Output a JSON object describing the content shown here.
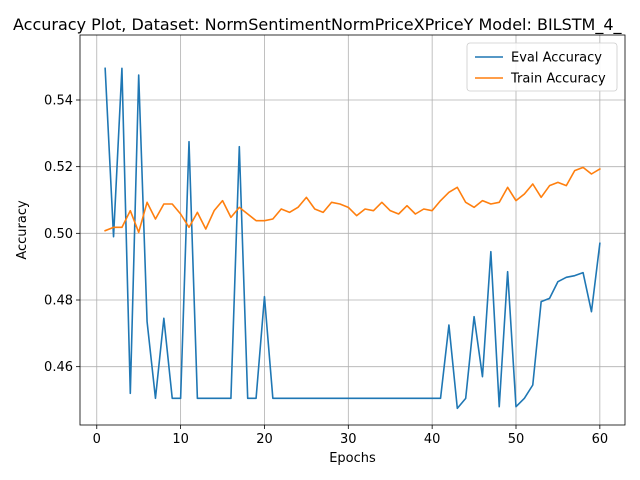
{
  "chart_data": {
    "type": "line",
    "title": "Accuracy Plot, Dataset: NormSentimentNormPriceXPriceY Model: BILSTM_4_",
    "xlabel": "Epochs",
    "ylabel": "Accuracy",
    "xlim": [
      -2,
      63
    ],
    "ylim": [
      0.4425,
      0.5595
    ],
    "xticks": [
      0,
      10,
      20,
      30,
      40,
      50,
      60
    ],
    "yticks": [
      0.46,
      0.48,
      0.5,
      0.52,
      0.54
    ],
    "ytick_labels": [
      "0.46",
      "0.48",
      "0.50",
      "0.52",
      "0.54"
    ],
    "grid": true,
    "legend_position": "top-right",
    "x": [
      1,
      2,
      3,
      4,
      5,
      6,
      7,
      8,
      9,
      10,
      11,
      12,
      13,
      14,
      15,
      16,
      17,
      18,
      19,
      20,
      21,
      22,
      23,
      24,
      25,
      26,
      27,
      28,
      29,
      30,
      31,
      32,
      33,
      34,
      35,
      36,
      37,
      38,
      39,
      40,
      41,
      42,
      43,
      44,
      45,
      46,
      47,
      48,
      49,
      50,
      51,
      52,
      53,
      54,
      55,
      56,
      57,
      58,
      59,
      60
    ],
    "series": [
      {
        "name": "Eval Accuracy",
        "color": "#1f77b4",
        "values": [
          0.5495,
          0.499,
          0.5495,
          0.452,
          0.5475,
          0.4735,
          0.4505,
          0.4745,
          0.4505,
          0.4505,
          0.5275,
          0.4505,
          0.4505,
          0.4505,
          0.4505,
          0.4505,
          0.526,
          0.4505,
          0.4505,
          0.481,
          0.4505,
          0.4505,
          0.4505,
          0.4505,
          0.4505,
          0.4505,
          0.4505,
          0.4505,
          0.4505,
          0.4505,
          0.4505,
          0.4505,
          0.4505,
          0.4505,
          0.4505,
          0.4505,
          0.4505,
          0.4505,
          0.4505,
          0.4505,
          0.4505,
          0.4725,
          0.4475,
          0.4505,
          0.475,
          0.457,
          0.4945,
          0.448,
          0.4885,
          0.448,
          0.4505,
          0.4545,
          0.4795,
          0.4805,
          0.4855,
          0.4868,
          0.4873,
          0.4882,
          0.4765,
          0.497
        ]
      },
      {
        "name": "Train Accuracy",
        "color": "#ff7f0e",
        "values": [
          0.5008,
          0.5018,
          0.5018,
          0.5068,
          0.5003,
          0.5093,
          0.5043,
          0.5088,
          0.5088,
          0.5058,
          0.5018,
          0.5063,
          0.5013,
          0.5068,
          0.5098,
          0.5048,
          0.5078,
          0.5058,
          0.5038,
          0.5038,
          0.5043,
          0.5073,
          0.5063,
          0.5078,
          0.5108,
          0.5073,
          0.5063,
          0.5093,
          0.5088,
          0.5078,
          0.5053,
          0.5073,
          0.5068,
          0.5093,
          0.5068,
          0.5058,
          0.5083,
          0.5058,
          0.5073,
          0.5068,
          0.5098,
          0.5123,
          0.5138,
          0.5093,
          0.5078,
          0.5098,
          0.5088,
          0.5093,
          0.5138,
          0.5098,
          0.5118,
          0.5148,
          0.5108,
          0.5143,
          0.5153,
          0.5143,
          0.5188,
          0.5198,
          0.5178,
          0.5193
        ]
      }
    ]
  }
}
